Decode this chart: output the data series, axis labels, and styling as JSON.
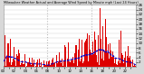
{
  "title": "Milwaukee Weather Actual and Average Wind Speed by Minute mph (Last 24 Hours)",
  "bg_color": "#d8d8d8",
  "plot_bg_color": "#ffffff",
  "bar_color": "#dd0000",
  "line_color": "#0000cc",
  "n_points": 1440,
  "ylim": [
    0,
    26
  ],
  "ytick_values": [
    2,
    4,
    6,
    8,
    10,
    12,
    14,
    16,
    18,
    20,
    22,
    24,
    26
  ],
  "vline_color": "#bbbbbb",
  "vline_style": ":",
  "seed": 42
}
